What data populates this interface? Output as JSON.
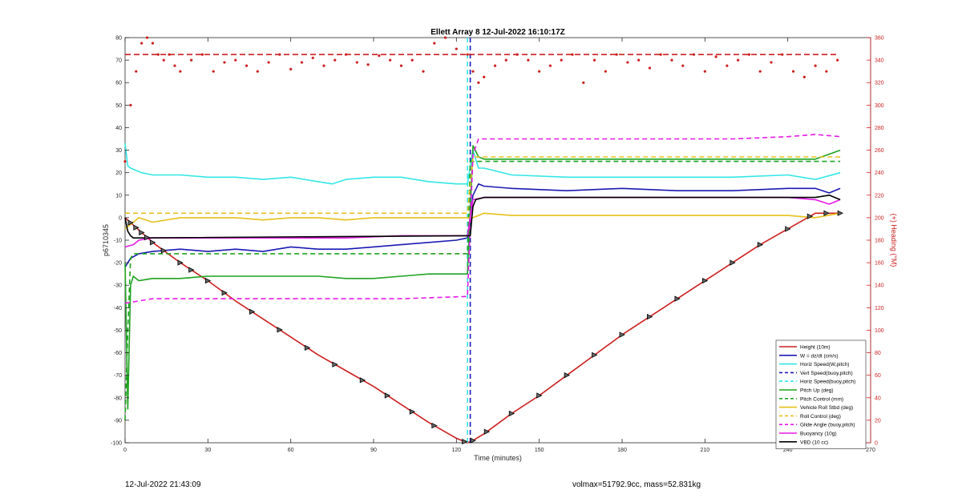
{
  "footer": {
    "timestamp": "12-Jul-2022 21:43:09",
    "summary": "volmax=51792.9cc, mass=52.831kg"
  },
  "chart_data": {
    "type": "line",
    "title": "Ellett Array 8 12-Jul-2022 16:10:17Z",
    "xlabel": "Time (minutes)",
    "ylabel": "p6710345",
    "y2label": "(+) Heading (°M)",
    "xlim": [
      0,
      270
    ],
    "ylim": [
      -100,
      80
    ],
    "y2lim": [
      0,
      360
    ],
    "xticks": [
      0,
      30,
      60,
      90,
      120,
      150,
      180,
      210,
      240,
      270
    ],
    "yticks": [
      -100,
      -90,
      -80,
      -70,
      -60,
      -50,
      -40,
      -30,
      -20,
      -10,
      0,
      10,
      20,
      30,
      40,
      50,
      60,
      70,
      80
    ],
    "y2ticks": [
      0,
      20,
      40,
      60,
      80,
      100,
      120,
      140,
      160,
      180,
      200,
      220,
      240,
      260,
      280,
      300,
      320,
      340,
      360
    ],
    "grid": false,
    "legend_position": "bottom-right",
    "colors": {
      "red": "#cc1f1f",
      "blue": "#1a1ab3",
      "cyan": "#33e6e6",
      "green": "#1fa31f",
      "yellow": "#e6c01a",
      "magenta": "#e619e6",
      "black": "#000000",
      "heading_axis": "#cc1f1f"
    },
    "series": [
      {
        "name": "Height (10m)",
        "color": "red",
        "style": "solid",
        "x": [
          0,
          10,
          20,
          30,
          40,
          50,
          60,
          70,
          80,
          90,
          100,
          110,
          120,
          124,
          126,
          130,
          140,
          150,
          160,
          170,
          180,
          190,
          200,
          210,
          220,
          230,
          240,
          250,
          259
        ],
        "y": [
          0,
          -11,
          -20,
          -28,
          -37,
          -45,
          -53,
          -61,
          -68,
          -75,
          -83,
          -91,
          -98,
          -100,
          -99,
          -96,
          -87,
          -79,
          -70,
          -61,
          -52,
          -44,
          -36,
          -28,
          -20,
          -12,
          -5,
          2,
          2
        ]
      },
      {
        "name": "W = dz/dt (cm/s)",
        "color": "blue",
        "style": "solid",
        "x": [
          0,
          2,
          5,
          10,
          20,
          30,
          40,
          50,
          60,
          70,
          80,
          90,
          100,
          110,
          120,
          124,
          126,
          128,
          130,
          140,
          160,
          180,
          200,
          220,
          240,
          250,
          255,
          259
        ],
        "y": [
          -22,
          -18,
          -16,
          -15,
          -14,
          -15,
          -14,
          -15,
          -13,
          -14,
          -14,
          -13,
          -12,
          -11,
          -10,
          -9,
          10,
          15,
          14,
          13,
          12,
          13,
          12,
          12,
          13,
          13,
          11,
          13
        ]
      },
      {
        "name": "Horiz Speed(W,pitch)",
        "color": "cyan",
        "style": "solid",
        "x": [
          0,
          1,
          2,
          4,
          6,
          10,
          20,
          30,
          40,
          50,
          60,
          70,
          75,
          80,
          90,
          100,
          110,
          120,
          124,
          126,
          128,
          130,
          140,
          160,
          180,
          200,
          220,
          240,
          250,
          259
        ],
        "y": [
          33,
          23,
          22,
          21,
          20,
          19,
          19,
          18,
          18,
          17,
          18,
          16,
          15,
          17,
          18,
          18,
          16,
          15,
          15,
          30,
          22,
          22,
          19,
          18,
          18,
          18,
          18,
          19,
          17,
          20
        ]
      },
      {
        "name": "Vert Speed(buoy,pitch)",
        "color": "blue",
        "style": "dashed",
        "x": [
          125,
          125
        ],
        "y": [
          -100,
          80
        ]
      },
      {
        "name": "Horiz Speed(buoy,pitch)",
        "color": "cyan",
        "style": "dashed",
        "x": [
          124,
          124
        ],
        "y": [
          -100,
          80
        ]
      },
      {
        "name": "Pitch Up (deg)",
        "color": "green",
        "style": "solid",
        "x": [
          0,
          1,
          2,
          3,
          5,
          10,
          20,
          30,
          40,
          50,
          60,
          70,
          80,
          90,
          100,
          110,
          120,
          124,
          126,
          128,
          130,
          140,
          160,
          180,
          200,
          220,
          240,
          250,
          259
        ],
        "y": [
          -20,
          -85,
          -30,
          -26,
          -28,
          -27,
          -27,
          -26,
          -26,
          -26,
          -26,
          -26,
          -27,
          -27,
          -26,
          -25,
          -25,
          -25,
          32,
          27,
          26,
          26,
          26,
          26,
          26,
          26,
          26,
          26,
          30
        ]
      },
      {
        "name": "Pitch Control (mm)",
        "color": "green",
        "style": "dashed",
        "x": [
          0,
          1,
          2,
          3,
          124,
          125,
          126,
          259
        ],
        "y": [
          -90,
          -50,
          -18,
          -16,
          -16,
          25,
          25,
          25
        ]
      },
      {
        "name": "Vehicle Roll Stbd (deg)",
        "color": "yellow",
        "style": "solid",
        "x": [
          0,
          5,
          10,
          20,
          30,
          40,
          50,
          60,
          70,
          80,
          90,
          100,
          110,
          120,
          124,
          126,
          130,
          140,
          160,
          180,
          200,
          220,
          240,
          250,
          259
        ],
        "y": [
          -5,
          0,
          -2,
          0,
          0,
          0,
          -1,
          0,
          0,
          -1,
          0,
          0,
          0,
          0,
          0,
          0,
          2,
          1,
          1,
          1,
          1,
          1,
          1,
          0,
          2
        ]
      },
      {
        "name": "Roll Control (deg)",
        "color": "yellow",
        "style": "dashed",
        "x": [
          0,
          10,
          20,
          30,
          40,
          50,
          60,
          70,
          80,
          90,
          100,
          110,
          120,
          124,
          126,
          130,
          140,
          160,
          180,
          200,
          220,
          240,
          259
        ],
        "y": [
          2,
          2,
          2,
          2,
          2,
          2,
          2,
          2,
          2,
          2,
          2,
          2,
          2,
          2,
          27,
          27,
          27,
          27,
          27,
          27,
          27,
          27,
          27
        ]
      },
      {
        "name": "Glide Angle (buoy,pitch)",
        "color": "magenta",
        "style": "dashed",
        "x": [
          0,
          5,
          10,
          20,
          30,
          40,
          60,
          80,
          100,
          124,
          126,
          128,
          140,
          160,
          180,
          200,
          220,
          240,
          250,
          259
        ],
        "y": [
          -38,
          -37,
          -36,
          -36,
          -36,
          -36,
          -36,
          -36,
          -36,
          -35,
          28,
          35,
          35,
          35,
          35,
          35,
          35,
          36,
          37,
          36
        ]
      },
      {
        "name": "Buoyancy (10g)",
        "color": "magenta",
        "style": "solid",
        "x": [
          0,
          3,
          5,
          10,
          20,
          40,
          60,
          80,
          100,
          124,
          126,
          130,
          140,
          160,
          200,
          240,
          250,
          255,
          259
        ],
        "y": [
          -13,
          -12,
          -10,
          -9,
          -9,
          -9,
          -9,
          -9,
          -8,
          -8,
          8,
          9,
          9,
          9,
          9,
          9,
          8,
          6,
          8
        ]
      },
      {
        "name": "VBD (10 cc)",
        "color": "black",
        "style": "solid",
        "x": [
          0,
          1,
          2,
          3,
          4,
          124,
          125,
          126,
          127,
          130,
          140,
          160,
          200,
          240,
          250,
          255,
          259
        ],
        "y": [
          0,
          -6,
          -8,
          -9,
          -9,
          -8,
          -8,
          5,
          8,
          9,
          9,
          9,
          9,
          9,
          9,
          10,
          8
        ]
      }
    ],
    "heading": {
      "color": "red",
      "target_deg": 345,
      "x": [
        0,
        2,
        4,
        6,
        8,
        10,
        12,
        14,
        16,
        18,
        20,
        24,
        28,
        32,
        36,
        40,
        44,
        48,
        52,
        56,
        60,
        64,
        68,
        72,
        76,
        80,
        84,
        88,
        92,
        96,
        100,
        104,
        108,
        112,
        116,
        120,
        124,
        126,
        128,
        130,
        134,
        138,
        142,
        146,
        150,
        154,
        158,
        162,
        166,
        170,
        174,
        178,
        182,
        186,
        190,
        194,
        198,
        202,
        206,
        210,
        214,
        218,
        222,
        226,
        230,
        234,
        238,
        242,
        246,
        250,
        254,
        258
      ],
      "y": [
        250,
        300,
        330,
        355,
        360,
        355,
        345,
        340,
        345,
        335,
        330,
        340,
        345,
        330,
        338,
        340,
        335,
        330,
        338,
        345,
        332,
        338,
        342,
        335,
        340,
        345,
        338,
        336,
        344,
        340,
        335,
        340,
        330,
        355,
        360,
        350,
        345,
        330,
        320,
        325,
        335,
        340,
        345,
        340,
        330,
        335,
        340,
        345,
        320,
        340,
        330,
        345,
        338,
        340,
        333,
        345,
        340,
        335,
        345,
        330,
        343,
        335,
        340,
        345,
        330,
        338,
        345,
        330,
        325,
        335,
        330,
        340
      ]
    },
    "markers": {
      "on_series": "Height (10m)",
      "x": [
        2,
        4,
        6,
        8,
        10,
        14,
        20,
        24,
        30,
        36,
        46,
        56,
        66,
        76,
        86,
        95,
        104,
        112,
        123,
        126,
        131,
        140,
        150,
        160,
        170,
        180,
        190,
        200,
        210,
        220,
        230,
        240,
        248,
        254,
        259
      ]
    }
  }
}
